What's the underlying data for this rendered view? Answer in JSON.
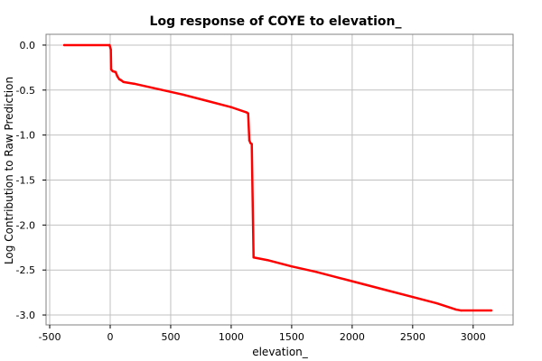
{
  "chart_data": {
    "type": "line",
    "title": "Log response of COYE to elevation_",
    "xlabel": "elevation_",
    "ylabel": "Log Contribution to Raw Prediction",
    "xlim": [
      -530,
      3330
    ],
    "ylim": [
      -3.11,
      0.12
    ],
    "x_ticks": [
      -500,
      0,
      500,
      1000,
      1500,
      2000,
      2500,
      3000
    ],
    "y_ticks": [
      0.0,
      -0.5,
      -1.0,
      -1.5,
      -2.0,
      -2.5,
      -3.0
    ],
    "x_tick_labels": [
      "-500",
      "0",
      "500",
      "1000",
      "1500",
      "2000",
      "2500",
      "3000"
    ],
    "y_tick_labels": [
      "0.0",
      "-0.5",
      "-1.0",
      "-1.5",
      "-2.0",
      "-2.5",
      "-3.0"
    ],
    "grid": true,
    "legend": "none",
    "colors": {
      "line": "#ff0000",
      "grid": "#c0c0c0",
      "axis": "#000000",
      "plot_bg": "#ffffff",
      "plot_border": "#808080"
    },
    "series": [
      {
        "values": [
          {
            "x": -380,
            "y": 0.0
          },
          {
            "x": -5,
            "y": 0.0
          },
          {
            "x": 5,
            "y": -0.05
          },
          {
            "x": 8,
            "y": -0.27
          },
          {
            "x": 20,
            "y": -0.29
          },
          {
            "x": 45,
            "y": -0.3
          },
          {
            "x": 60,
            "y": -0.35
          },
          {
            "x": 75,
            "y": -0.38
          },
          {
            "x": 90,
            "y": -0.39
          },
          {
            "x": 110,
            "y": -0.41
          },
          {
            "x": 200,
            "y": -0.43
          },
          {
            "x": 400,
            "y": -0.49
          },
          {
            "x": 600,
            "y": -0.55
          },
          {
            "x": 800,
            "y": -0.62
          },
          {
            "x": 1000,
            "y": -0.69
          },
          {
            "x": 1130,
            "y": -0.75
          },
          {
            "x": 1140,
            "y": -0.76
          },
          {
            "x": 1150,
            "y": -1.06
          },
          {
            "x": 1160,
            "y": -1.09
          },
          {
            "x": 1170,
            "y": -1.1
          },
          {
            "x": 1185,
            "y": -2.36
          },
          {
            "x": 1300,
            "y": -2.39
          },
          {
            "x": 1500,
            "y": -2.46
          },
          {
            "x": 1700,
            "y": -2.52
          },
          {
            "x": 1900,
            "y": -2.59
          },
          {
            "x": 2100,
            "y": -2.66
          },
          {
            "x": 2300,
            "y": -2.73
          },
          {
            "x": 2500,
            "y": -2.8
          },
          {
            "x": 2700,
            "y": -2.87
          },
          {
            "x": 2860,
            "y": -2.94
          },
          {
            "x": 2900,
            "y": -2.95
          },
          {
            "x": 3150,
            "y": -2.95
          }
        ]
      }
    ]
  }
}
